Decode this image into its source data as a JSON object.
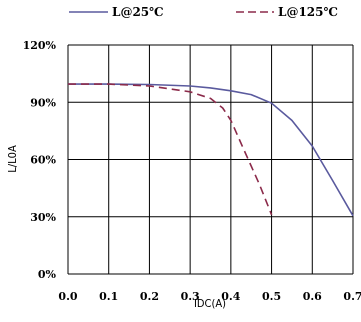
{
  "chart_data": {
    "type": "line",
    "title": "",
    "xlabel": "IDC(A)",
    "ylabel": "L/L0A",
    "xlim": [
      0,
      0.7
    ],
    "ylim": [
      0,
      120
    ],
    "x_ticks": [
      0.0,
      0.1,
      0.2,
      0.3,
      0.4,
      0.5,
      0.6,
      0.7
    ],
    "x_tick_labels": [
      "0.0",
      "0.1",
      "0.2",
      "0.3",
      "0.4",
      "0.5",
      "0.6",
      "0.7"
    ],
    "y_ticks": [
      0,
      30,
      60,
      90,
      120
    ],
    "y_tick_labels": [
      "0%",
      "30%",
      "60%",
      "90%",
      "120%"
    ],
    "grid": true,
    "legend_position": "top",
    "series": [
      {
        "name": "L@25℃",
        "color": "#5a5a9e",
        "dash": "solid",
        "points": [
          [
            0.0,
            99.5
          ],
          [
            0.1,
            99.5
          ],
          [
            0.2,
            99.3
          ],
          [
            0.3,
            98.5
          ],
          [
            0.35,
            97.5
          ],
          [
            0.4,
            96.0
          ],
          [
            0.45,
            94.0
          ],
          [
            0.5,
            89.5
          ],
          [
            0.55,
            80.5
          ],
          [
            0.6,
            67.0
          ],
          [
            0.65,
            49.0
          ],
          [
            0.7,
            30.5
          ]
        ]
      },
      {
        "name": "L@125℃",
        "color": "#8b2a4a",
        "dash": "dashed",
        "points": [
          [
            0.0,
            99.5
          ],
          [
            0.1,
            99.5
          ],
          [
            0.2,
            98.5
          ],
          [
            0.25,
            97.0
          ],
          [
            0.3,
            95.5
          ],
          [
            0.35,
            92.0
          ],
          [
            0.38,
            87.0
          ],
          [
            0.4,
            80.5
          ],
          [
            0.43,
            66.0
          ],
          [
            0.47,
            47.0
          ],
          [
            0.5,
            31.0
          ]
        ]
      }
    ]
  }
}
